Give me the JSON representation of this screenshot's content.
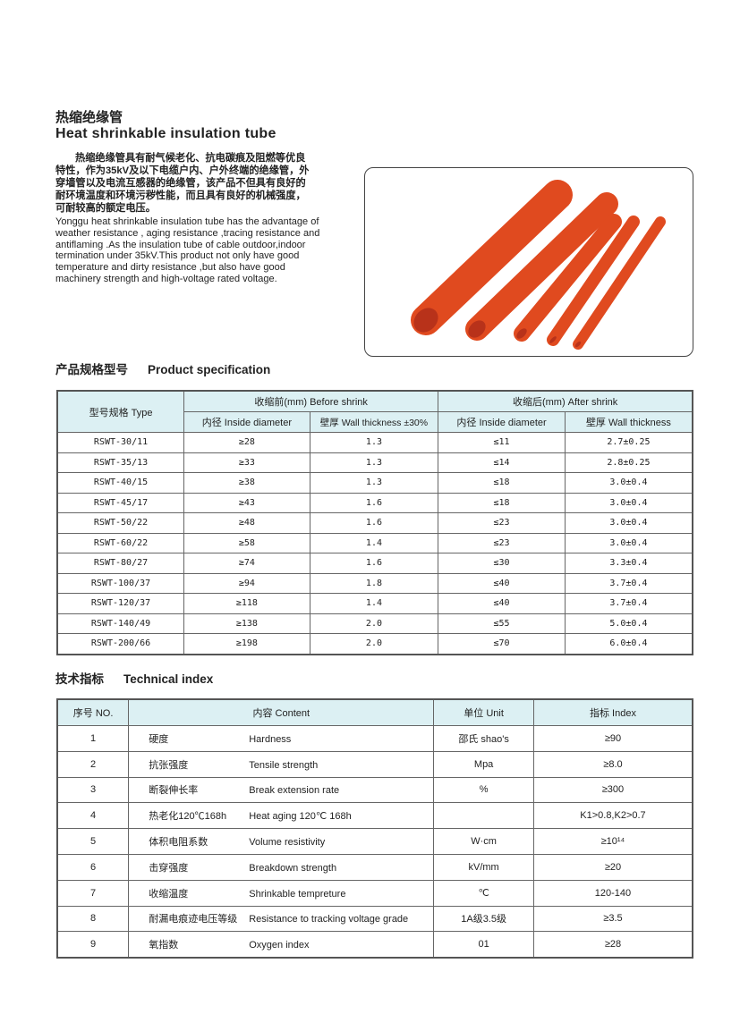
{
  "title_cn": "热缩绝缘管",
  "title_en": "Heat shrinkable insulation tube",
  "intro_cn": "热缩绝缘管具有耐气候老化、抗电碳痕及阻燃等优良特性，作为35kV及以下电缆户内、户外终端的绝缘管，外穿墙管以及电流互感器的绝缘管，该产品不但具有良好的耐环境温度和环境污秽性能，而且具有良好的机械强度，可耐较高的额定电压。",
  "intro_en": "Yonggu heat shrinkable insulation tube has the advantage of weather resistance , aging resistance ,tracing resistance and antiflaming .As the insulation tube of cable outdoor,indoor termination under 35kV.This product not only have good temperature and dirty resistance ,but also have good machinery strength and high-voltage rated voltage.",
  "tube_color": "#e04a1f",
  "spec": {
    "heading_cn": "产品规格型号",
    "heading_en": "Product specification",
    "h_type": "型号规格 Type",
    "h_before": "收缩前(mm) Before shrink",
    "h_after": "收缩后(mm) After shrink",
    "h_id1": "内径 Inside diameter",
    "h_wt1": "壁厚 Wall thickness ±30%",
    "h_id2": "内径 Inside diameter",
    "h_wt2": "壁厚 Wall thickness",
    "rows": [
      [
        "RSWT-30/11",
        "≥28",
        "1.3",
        "≤11",
        "2.7±0.25"
      ],
      [
        "RSWT-35/13",
        "≥33",
        "1.3",
        "≤14",
        "2.8±0.25"
      ],
      [
        "RSWT-40/15",
        "≥38",
        "1.3",
        "≤18",
        "3.0±0.4"
      ],
      [
        "RSWT-45/17",
        "≥43",
        "1.6",
        "≤18",
        "3.0±0.4"
      ],
      [
        "RSWT-50/22",
        "≥48",
        "1.6",
        "≤23",
        "3.0±0.4"
      ],
      [
        "RSWT-60/22",
        "≥58",
        "1.4",
        "≤23",
        "3.0±0.4"
      ],
      [
        "RSWT-80/27",
        "≥74",
        "1.6",
        "≤30",
        "3.3±0.4"
      ],
      [
        "RSWT-100/37",
        "≥94",
        "1.8",
        "≤40",
        "3.7±0.4"
      ],
      [
        "RSWT-120/37",
        "≥118",
        "1.4",
        "≤40",
        "3.7±0.4"
      ],
      [
        "RSWT-140/49",
        "≥138",
        "2.0",
        "≤55",
        "5.0±0.4"
      ],
      [
        "RSWT-200/66",
        "≥198",
        "2.0",
        "≤70",
        "6.0±0.4"
      ]
    ]
  },
  "tech": {
    "heading_cn": "技术指标",
    "heading_en": "Technical index",
    "h_no": "序号 NO.",
    "h_content": "内容 Content",
    "h_unit": "单位 Unit",
    "h_index": "指标 Index",
    "rows": [
      [
        "1",
        "硬度",
        "Hardness",
        "邵氏 shao's",
        "≥90"
      ],
      [
        "2",
        "抗张强度",
        "Tensile strength",
        "Mpa",
        "≥8.0"
      ],
      [
        "3",
        "断裂伸长率",
        "Break extension rate",
        "%",
        "≥300"
      ],
      [
        "4",
        "热老化120℃168h",
        "Heat aging 120℃ 168h",
        "",
        "K1>0.8,K2>0.7"
      ],
      [
        "5",
        "体积电阻系数",
        "Volume resistivity",
        "W·cm",
        "≥10¹⁴"
      ],
      [
        "6",
        "击穿强度",
        "Breakdown strength",
        "kV/mm",
        "≥20"
      ],
      [
        "7",
        "收缩温度",
        "Shrinkable tempreture",
        "℃",
        "120-140"
      ],
      [
        "8",
        "耐漏电痕迹电压等级",
        "Resistance to tracking voltage grade",
        "1A级3.5级",
        "≥3.5"
      ],
      [
        "9",
        "氧指数",
        "Oxygen index",
        "01",
        "≥28"
      ]
    ]
  }
}
